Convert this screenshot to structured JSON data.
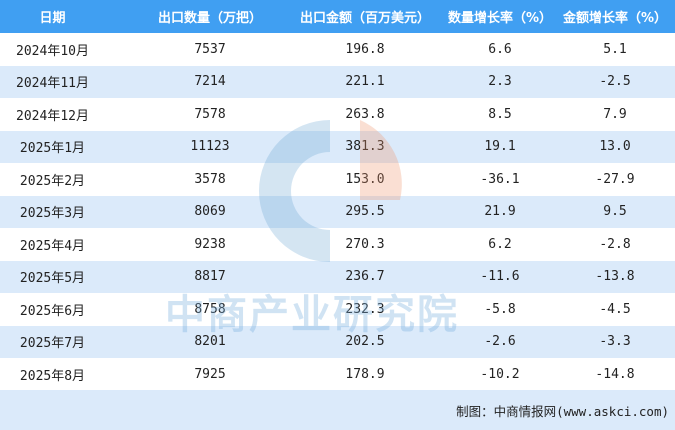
{
  "header": [
    "日期",
    "出口数量（万把）",
    "出口金额（百万美元）",
    "数量增长率（%）",
    "金额增长率（%）"
  ],
  "rows": [
    [
      "2024年10月",
      "7537",
      "196.8",
      "6.6",
      "5.1"
    ],
    [
      "2024年11月",
      "7214",
      "221.1",
      "2.3",
      "-2.5"
    ],
    [
      "2024年12月",
      "7578",
      "263.8",
      "8.5",
      "7.9"
    ],
    [
      "2025年1月",
      "11123",
      "381.3",
      "19.1",
      "13.0"
    ],
    [
      "2025年2月",
      "3578",
      "153.0",
      "-36.1",
      "-27.9"
    ],
    [
      "2025年3月",
      "8069",
      "295.5",
      "21.9",
      "9.5"
    ],
    [
      "2025年4月",
      "9238",
      "270.3",
      "6.2",
      "-2.8"
    ],
    [
      "2025年5月",
      "8817",
      "236.7",
      "-11.6",
      "-13.8"
    ],
    [
      "2025年6月",
      "8758",
      "232.3",
      "-5.8",
      "-4.5"
    ],
    [
      "2025年7月",
      "8201",
      "202.5",
      "-2.6",
      "-3.3"
    ],
    [
      "2025年8月",
      "7925",
      "178.9",
      "-10.2",
      "-14.8"
    ]
  ],
  "footer": {
    "credit": "制图：中商情报网(www.askci.com)"
  },
  "watermark": {
    "text": "中商产业研究院"
  },
  "colors": {
    "header_bg": "#409ff2",
    "alt_row_bg": "#dbeafa"
  }
}
